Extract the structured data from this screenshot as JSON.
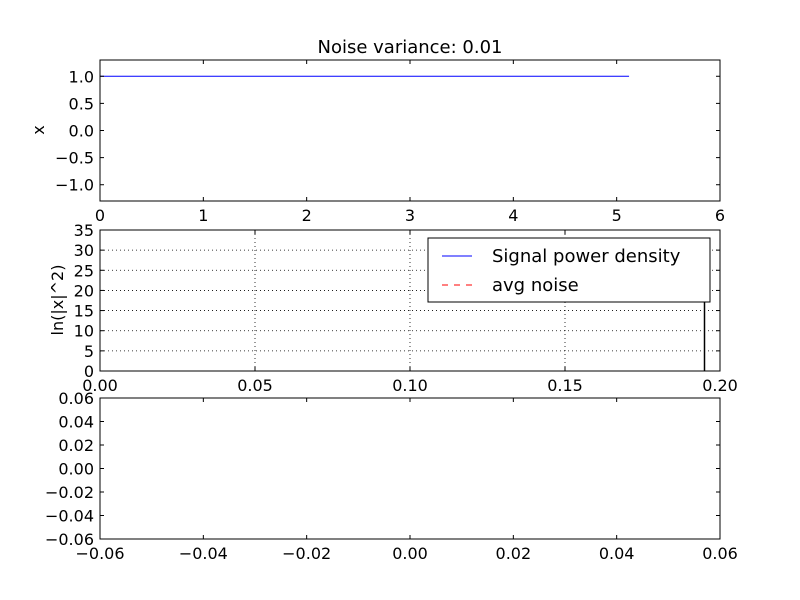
{
  "chart_data": [
    {
      "type": "line",
      "title": "Noise variance: 0.01",
      "xlabel": "",
      "ylabel": "x",
      "xlim": [
        0,
        6
      ],
      "ylim": [
        -1.3,
        1.3
      ],
      "xticks": [
        "0",
        "1",
        "2",
        "3",
        "4",
        "5",
        "6"
      ],
      "yticks": [
        "1.0",
        "0.5",
        "0.0",
        "−0.5",
        "−1.0"
      ],
      "grid": false,
      "series": [
        {
          "color": "#0000ff",
          "style": "solid",
          "x": [
            0,
            5.12
          ],
          "y": [
            1.0,
            1.0
          ]
        }
      ]
    },
    {
      "type": "line",
      "title": "",
      "xlabel": "",
      "ylabel": "ln(|x|^2)",
      "xlim": [
        0,
        0.2
      ],
      "ylim": [
        0,
        35
      ],
      "xticks": [
        "0.00",
        "0.05",
        "0.10",
        "0.15",
        "0.20"
      ],
      "yticks": [
        "0",
        "5",
        "10",
        "15",
        "20",
        "25",
        "30",
        "35"
      ],
      "grid": true,
      "legend_position": "top-right",
      "series": [
        {
          "name": "Signal power density",
          "color": "#0000ff",
          "style": "solid",
          "x": [
            0.195,
            0.195
          ],
          "y": [
            0,
            33
          ]
        },
        {
          "name": "avg noise",
          "color": "#ff0000",
          "style": "dashed",
          "x": [],
          "y": []
        }
      ]
    },
    {
      "type": "line",
      "title": "",
      "xlabel": "",
      "ylabel": "",
      "xlim": [
        -0.06,
        0.06
      ],
      "ylim": [
        -0.06,
        0.06
      ],
      "xticks": [
        "−0.06",
        "−0.04",
        "−0.02",
        "0.00",
        "0.02",
        "0.04",
        "0.06"
      ],
      "yticks": [
        "0.06",
        "0.04",
        "0.02",
        "0.00",
        "−0.02",
        "−0.04",
        "−0.06"
      ],
      "grid": false,
      "series": []
    }
  ]
}
